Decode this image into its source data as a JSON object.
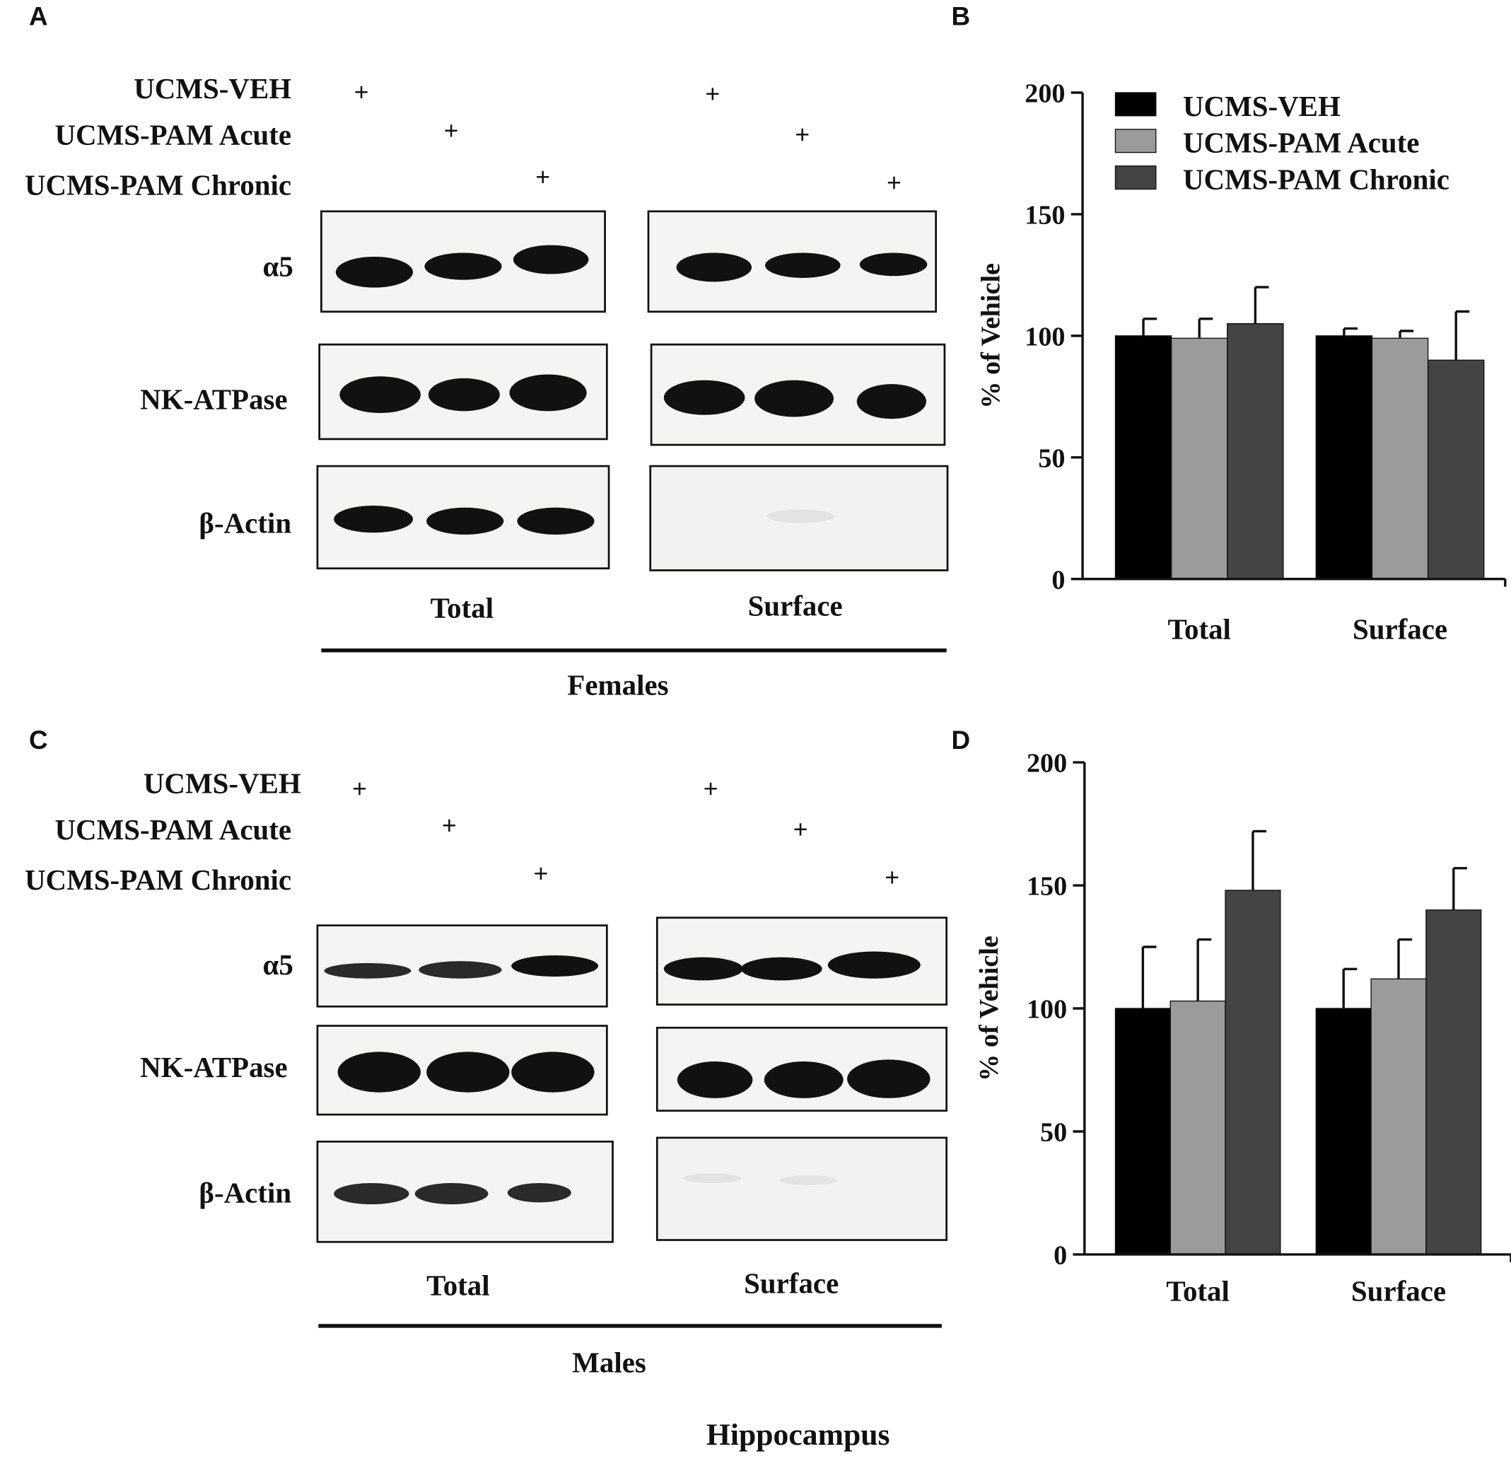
{
  "panels": {
    "A": {
      "letter": "A"
    },
    "B": {
      "letter": "B"
    },
    "C": {
      "letter": "C"
    },
    "D": {
      "letter": "D"
    }
  },
  "conditions": [
    "UCMS-VEH",
    "UCMS-PAM Acute",
    "UCMS-PAM Chronic"
  ],
  "plus_mark": "+",
  "blot_rows": [
    "α5",
    "NK-ATPase",
    "β-Actin"
  ],
  "fractions": [
    "Total",
    "Surface"
  ],
  "groups": {
    "females": "Females",
    "males": "Males"
  },
  "caption": "Hippocampus",
  "colors": {
    "veh": "#000000",
    "acute": "#9b9b9b",
    "chronic": "#444444"
  },
  "chart_data": [
    {
      "type": "bar",
      "panel": "B",
      "categories": [
        "Total",
        "Surface"
      ],
      "series": [
        {
          "name": "UCMS-VEH",
          "values": [
            100,
            100
          ],
          "errors": [
            7,
            3
          ]
        },
        {
          "name": "UCMS-PAM Acute",
          "values": [
            99,
            99
          ],
          "errors": [
            8,
            3
          ]
        },
        {
          "name": "UCMS-PAM Chronic",
          "values": [
            105,
            90
          ],
          "errors": [
            15,
            20
          ]
        }
      ],
      "ylabel": "% of Vehicle",
      "ylim": [
        0,
        200
      ],
      "yticks": [
        0,
        50,
        100,
        150,
        200
      ],
      "legend": "top-left",
      "grid": false
    },
    {
      "type": "bar",
      "panel": "D",
      "categories": [
        "Total",
        "Surface"
      ],
      "series": [
        {
          "name": "UCMS-VEH",
          "values": [
            100,
            100
          ],
          "errors": [
            25,
            16
          ]
        },
        {
          "name": "UCMS-PAM Acute",
          "values": [
            103,
            112
          ],
          "errors": [
            25,
            16
          ]
        },
        {
          "name": "UCMS-PAM Chronic",
          "values": [
            148,
            140
          ],
          "errors": [
            24,
            17
          ]
        }
      ],
      "ylabel": "% of Vehicle",
      "ylim": [
        0,
        200
      ],
      "yticks": [
        0,
        50,
        100,
        150,
        200
      ],
      "legend": "none",
      "grid": false
    }
  ]
}
